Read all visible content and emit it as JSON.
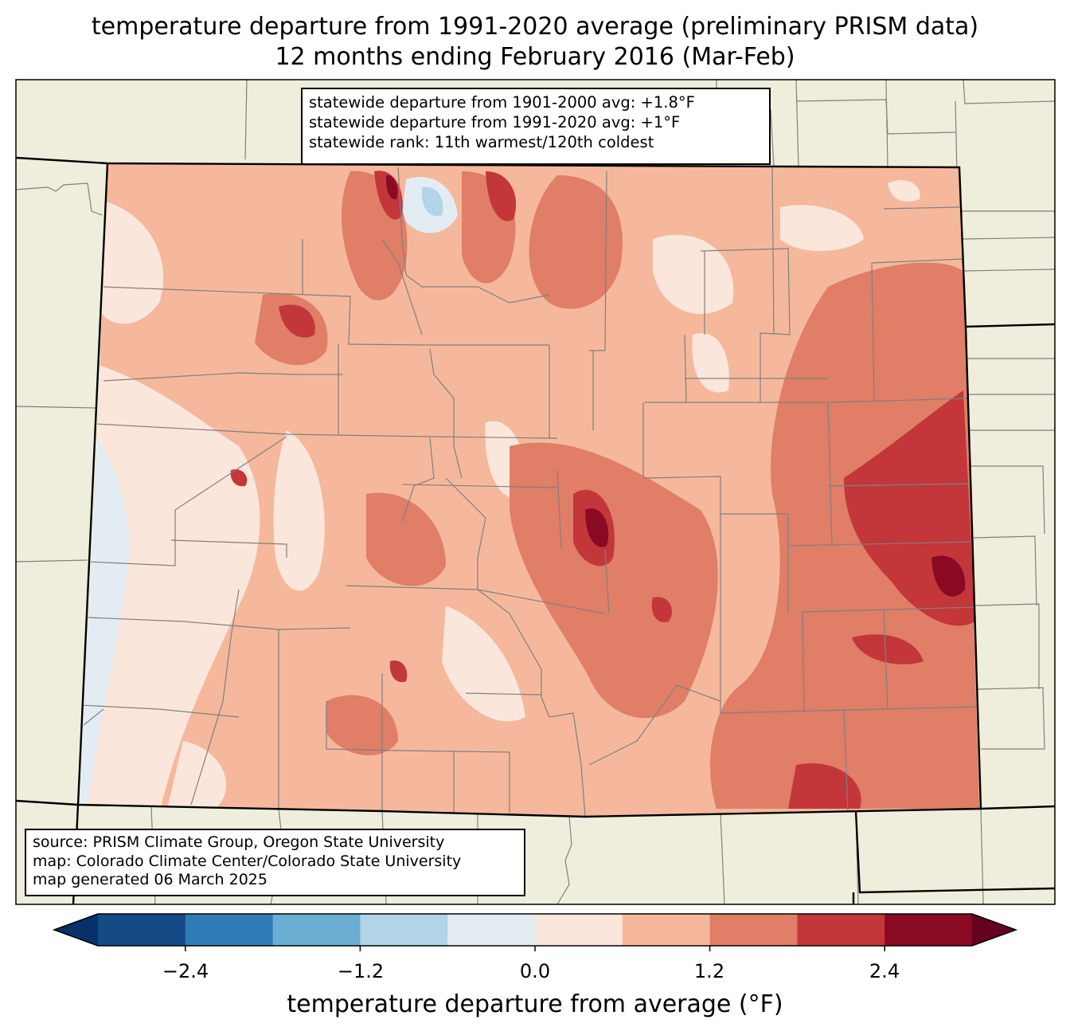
{
  "title_line1": "temperature departure from 1991-2020 average (preliminary PRISM data)",
  "title_line2": "12 months ending February 2016 (Mar-Feb)",
  "stats": [
    "statewide departure from 1901-2000 avg: +1.8°F",
    "statewide departure from 1991-2020 avg: +1°F",
    "statewide rank: 11th warmest/120th coldest"
  ],
  "source": [
    "source: PRISM Climate Group, Oregon State University",
    "map: Colorado Climate Center/Colorado State University",
    "map generated 06 March 2025"
  ],
  "colorbar": {
    "label": "temperature departure from average (°F)",
    "ticks": [
      "−2.4",
      "−1.2",
      "0.0",
      "1.2",
      "2.4"
    ],
    "bins": [
      -3.0,
      -2.4,
      -1.8,
      -1.2,
      -0.6,
      0.0,
      0.6,
      1.2,
      1.8,
      2.4,
      3.0
    ],
    "colors": [
      "#144b87",
      "#2f7bb6",
      "#6aaed3",
      "#b1d4e6",
      "#e4ecf3",
      "#fbe6dc",
      "#f5b89c",
      "#e07e67",
      "#c3363a",
      "#8a0a24"
    ],
    "under_color": "#08306b",
    "over_color": "#67001f"
  },
  "map_colors": {
    "land": "#efeedc",
    "county_line": "#808080",
    "state_line": "#000000"
  }
}
